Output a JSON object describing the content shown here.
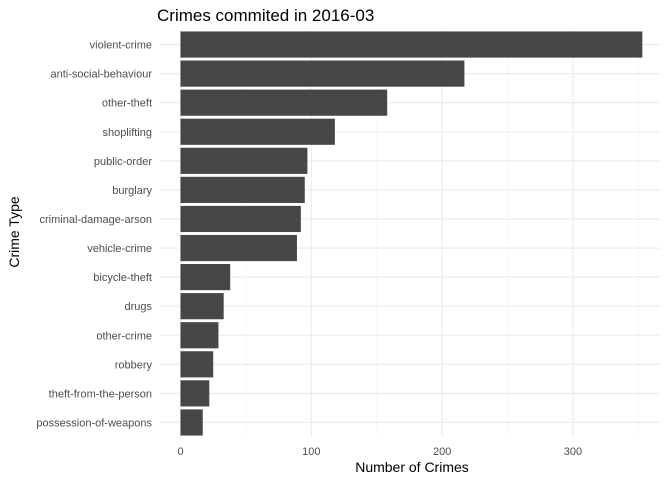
{
  "chart_data": {
    "type": "bar",
    "orientation": "horizontal",
    "title": "Crimes commited in 2016-03",
    "xlabel": "Number of Crimes",
    "ylabel": "Crime Type",
    "xlim": [
      0,
      362
    ],
    "x_ticks": [
      0,
      100,
      200,
      300
    ],
    "x_minor_ticks": [
      50,
      150,
      250,
      350
    ],
    "grid": true,
    "legend": "none",
    "categories": [
      "violent-crime",
      "anti-social-behaviour",
      "other-theft",
      "shoplifting",
      "public-order",
      "burglary",
      "criminal-damage-arson",
      "vehicle-crime",
      "bicycle-theft",
      "drugs",
      "other-crime",
      "robbery",
      "theft-from-the-person",
      "possession-of-weapons"
    ],
    "values": [
      353,
      217,
      158,
      118,
      97,
      95,
      92,
      89,
      38,
      33,
      29,
      25,
      22,
      17
    ]
  },
  "colors": {
    "bar": "#474747",
    "grid_major": "#ebebeb",
    "grid_minor": "#f5f5f5",
    "background": "#ffffff"
  }
}
